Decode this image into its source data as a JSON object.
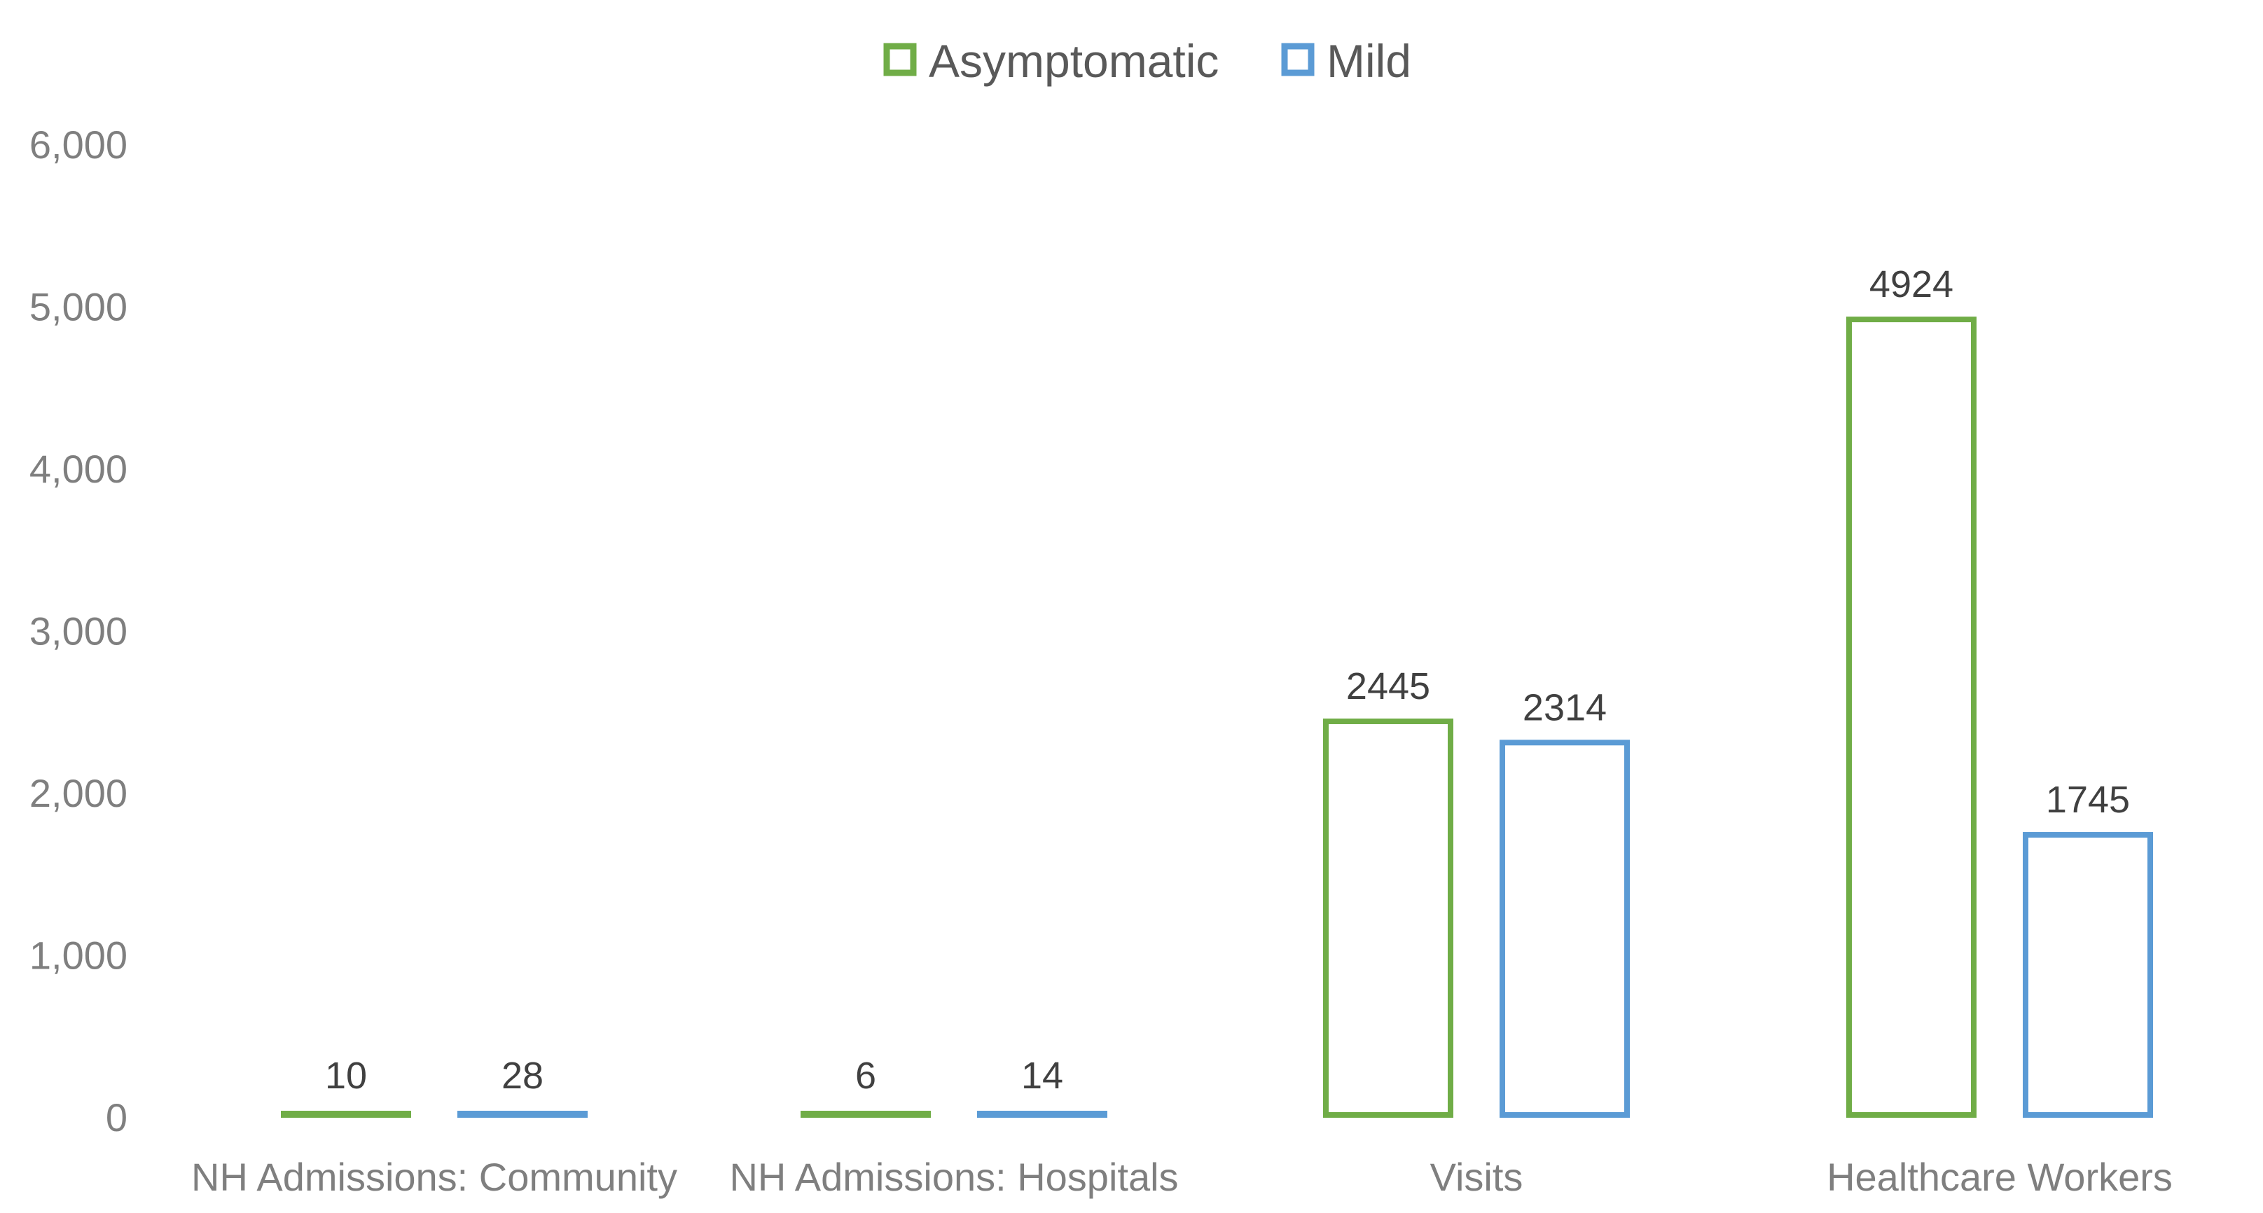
{
  "chart_data": {
    "type": "bar",
    "categories": [
      "NH Admissions: Community",
      "NH Admissions: Hospitals",
      "Visits",
      "Healthcare Workers"
    ],
    "series": [
      {
        "name": "Asymptomatic",
        "color": "#70ad47",
        "values": [
          10,
          6,
          2445,
          4924
        ]
      },
      {
        "name": "Mild",
        "color": "#5b9bd5",
        "values": [
          28,
          14,
          2314,
          1745
        ]
      }
    ],
    "y_ticks": [
      "0",
      "1,000",
      "2,000",
      "3,000",
      "4,000",
      "5,000",
      "6,000"
    ],
    "ylim": [
      0,
      6000
    ],
    "grid": false,
    "legend_position": "top-center",
    "bar_style": "outline"
  }
}
